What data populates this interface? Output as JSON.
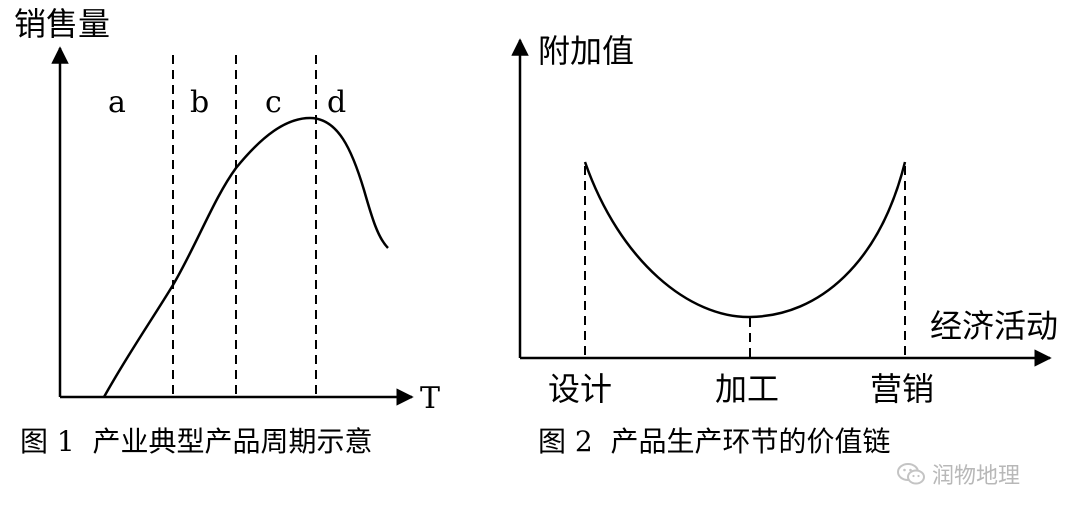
{
  "figure1": {
    "y_label": "销售量",
    "x_label": "T",
    "stage_labels": [
      "a",
      "b",
      "c",
      "d"
    ],
    "caption": "图 1  产业典型产品周期示意"
  },
  "figure2": {
    "y_label": "附加值",
    "x_label": "经济活动",
    "stage_labels": [
      "设计",
      "加工",
      "营销"
    ],
    "caption": "图 2  产品生产环节的价值链"
  },
  "watermark": {
    "text": "润物地理",
    "icon": "wechat-icon"
  }
}
